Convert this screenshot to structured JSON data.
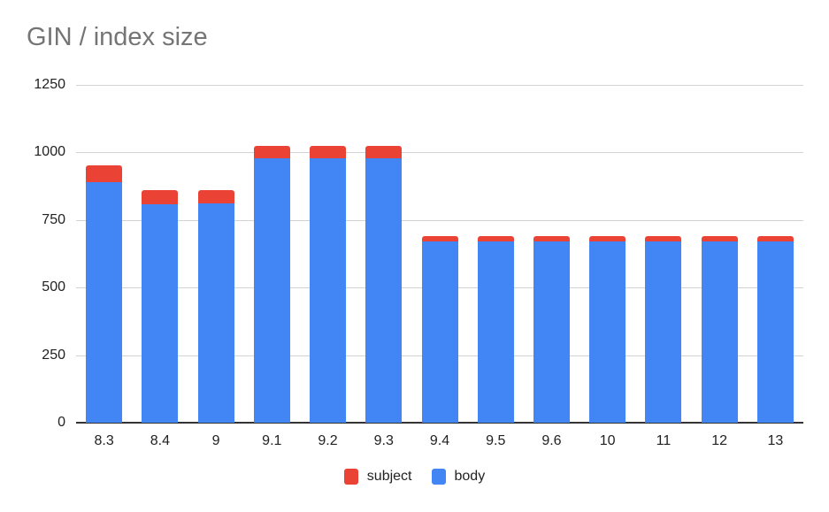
{
  "chart_data": {
    "type": "bar",
    "stacked": true,
    "title": "GIN / index size",
    "xlabel": "",
    "ylabel": "",
    "ylim": [
      0,
      1250
    ],
    "yticks": [
      0,
      250,
      500,
      750,
      1000,
      1250
    ],
    "grid": true,
    "legend_position": "bottom",
    "categories": [
      "8.3",
      "8.4",
      "9",
      "9.1",
      "9.2",
      "9.3",
      "9.4",
      "9.5",
      "9.6",
      "10",
      "11",
      "12",
      "13"
    ],
    "series": [
      {
        "name": "body",
        "color": "#4285f4",
        "values": [
          889,
          807,
          812,
          977,
          977,
          977,
          670,
          670,
          670,
          670,
          670,
          670,
          670
        ]
      },
      {
        "name": "subject",
        "color": "#ea4335",
        "values": [
          62,
          53,
          48,
          46,
          46,
          46,
          20,
          20,
          20,
          20,
          20,
          20,
          20
        ]
      }
    ]
  },
  "title": "GIN / index size",
  "legend": [
    {
      "label": "subject",
      "color": "#ea4335"
    },
    {
      "label": "body",
      "color": "#4285f4"
    }
  ]
}
